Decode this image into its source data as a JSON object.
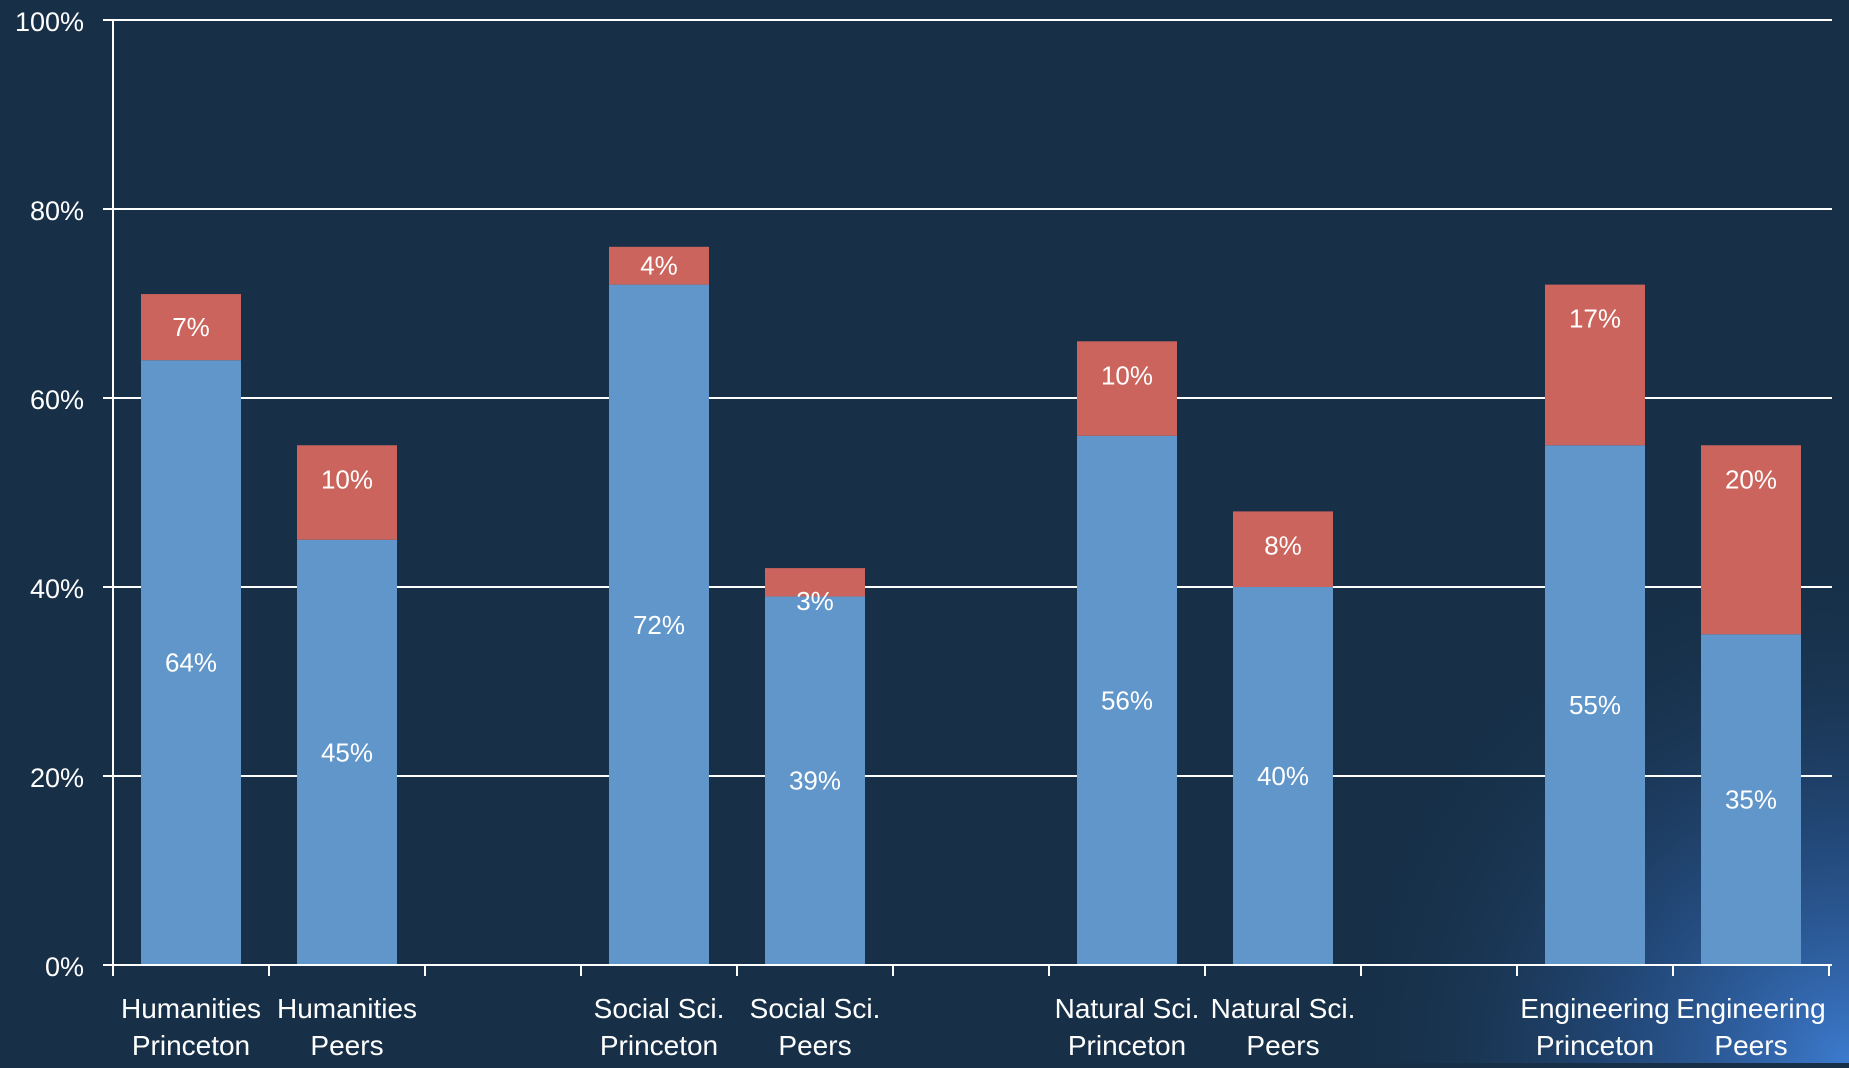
{
  "chart_data": {
    "type": "bar",
    "stacked": true,
    "categories": [
      [
        "Humanities",
        "Princeton"
      ],
      [
        "Humanities",
        "Peers"
      ],
      [
        "Social Sci.",
        "Princeton"
      ],
      [
        "Social Sci.",
        "Peers"
      ],
      [
        "Natural Sci.",
        "Princeton"
      ],
      [
        "Natural Sci.",
        "Peers"
      ],
      [
        "Engineering",
        "Princeton"
      ],
      [
        "Engineering",
        "Peers"
      ]
    ],
    "series": [
      {
        "values": [
          64,
          45,
          72,
          39,
          56,
          40,
          55,
          35
        ],
        "labels": [
          "64%",
          "45%",
          "72%",
          "39%",
          "56%",
          "40%",
          "55%",
          "35%"
        ],
        "color": "#6096CA"
      },
      {
        "values": [
          7,
          10,
          4,
          3,
          10,
          8,
          17,
          20
        ],
        "labels": [
          "7%",
          "10%",
          "4%",
          "3%",
          "10%",
          "8%",
          "17%",
          "20%"
        ],
        "color": "#CB645C"
      }
    ],
    "ylim": [
      0,
      100
    ],
    "yticks": [
      "0%",
      "20%",
      "40%",
      "60%",
      "80%",
      "100%"
    ],
    "ytick_values": [
      0,
      20,
      40,
      60,
      80,
      100
    ],
    "grid": true,
    "legend": "none",
    "colors": {
      "background": "#173048",
      "axis": "#FFFFFF",
      "text": "#FFFFFF"
    }
  }
}
